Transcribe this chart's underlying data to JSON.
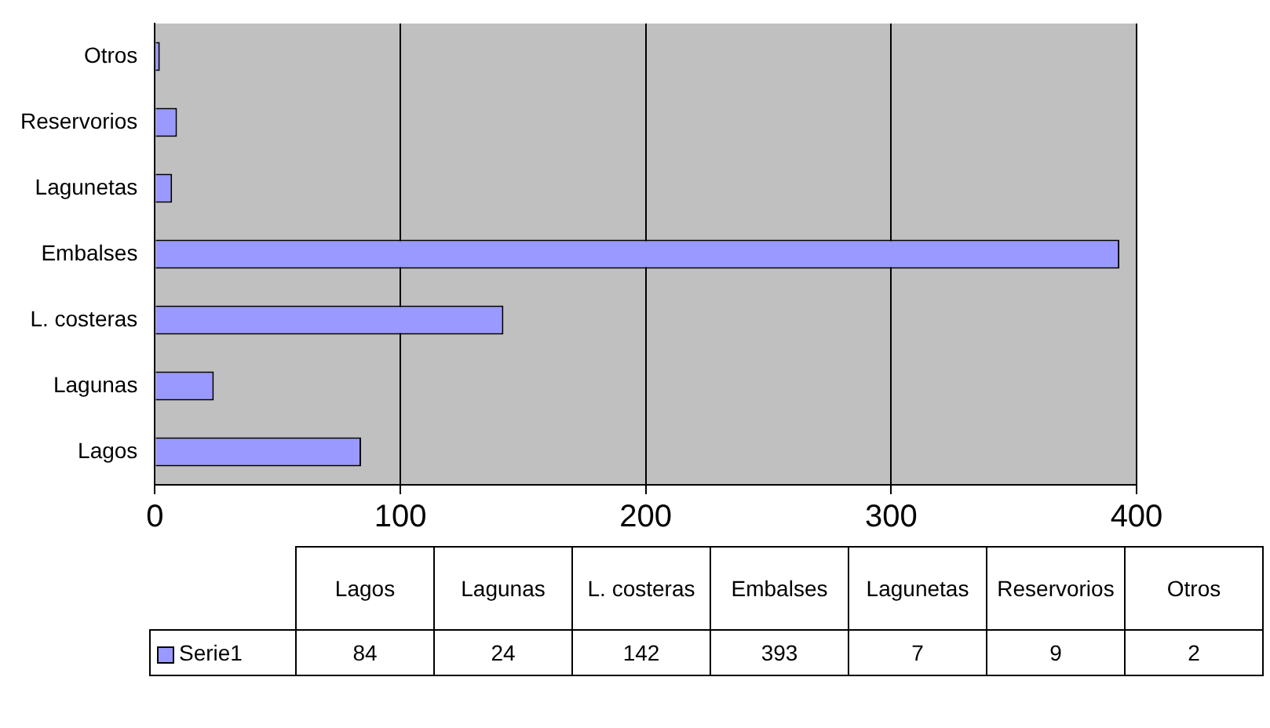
{
  "chart_data": {
    "type": "bar",
    "orientation": "horizontal",
    "categories": [
      "Otros",
      "Reservorios",
      "Lagunetas",
      "Embalses",
      "L. costeras",
      "Lagunas",
      "Lagos"
    ],
    "series": [
      {
        "name": "Serie1",
        "color": "#9999ff",
        "values": [
          2,
          9,
          7,
          393,
          142,
          24,
          84
        ]
      }
    ],
    "value_labels": [
      "2",
      "9",
      "7",
      "393",
      "142",
      "24",
      "84"
    ],
    "xlim": [
      0,
      400
    ],
    "xticks": [
      0,
      100,
      200,
      300,
      400
    ],
    "grid": "x",
    "legend": "bottom"
  }
}
